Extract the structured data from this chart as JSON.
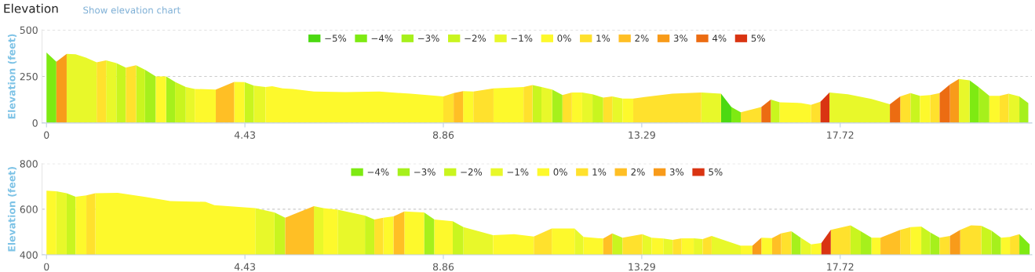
{
  "chart_data": [
    {
      "type": "area",
      "title": "Elevation",
      "annotations": [
        "Show elevation chart"
      ],
      "ylabel": "Elevation (feet)",
      "xlim": [
        -0.1,
        22.0
      ],
      "xticks": [
        0,
        4.43,
        8.86,
        13.29,
        17.72
      ],
      "ylim": [
        0,
        500
      ],
      "yticks": [
        0,
        250,
        500
      ],
      "grid": "y",
      "legend": "top",
      "series": [
        {
          "name": "−5%",
          "color": "#4cd912",
          "x": [
            15.06,
            15.29
          ],
          "values": [
            157,
            86
          ]
        },
        {
          "name": "−4%",
          "color": "#7eea12",
          "x": [
            0,
            0.22,
            null,
            15.29,
            15.5,
            null,
            20.61,
            20.81
          ],
          "values": [
            379,
            329,
            null,
            86,
            57,
            null,
            229,
            193
          ]
        },
        {
          "name": "−3%",
          "color": "#a6f01c",
          "x": [
            2.2,
            2.44,
            null,
            2.67,
            2.87,
            null,
            11.29,
            11.52,
            null,
            20.81,
            21.05,
            null,
            21.72,
            21.92
          ],
          "values": [
            286,
            250,
            null,
            250,
            221,
            null,
            179,
            150,
            null,
            193,
            146,
            null,
            143,
            107
          ]
        },
        {
          "name": "−2%",
          "color": "#c9f51f",
          "x": [
            1.56,
            1.77,
            null,
            2.0,
            2.2,
            null,
            2.87,
            3.11,
            null,
            4.42,
            4.63,
            null,
            10.85,
            11.05,
            null,
            12.19,
            12.43,
            null,
            16.17,
            16.37,
            null,
            19.29,
            19.5
          ],
          "values": [
            322,
            297,
            null,
            310,
            286,
            null,
            221,
            193,
            null,
            219,
            200,
            null,
            204,
            193,
            null,
            154,
            136,
            null,
            126,
            111,
            null,
            160,
            146
          ]
        },
        {
          "name": "−1%",
          "color": "#e8f82a",
          "x": [
            0.45,
            0.65,
            0.88,
            1.12,
            null,
            1.33,
            1.56,
            null,
            3.11,
            3.31,
            null,
            4.63,
            4.89,
            null,
            11.05,
            11.29,
            null,
            11.96,
            12.19,
            null,
            12.63,
            12.86,
            null,
            14.62,
            15.06,
            null,
            17.48,
            17.89,
            18.42,
            18.83,
            null,
            20.37,
            20.61,
            null,
            21.48,
            21.72
          ],
          "values": [
            371,
            369,
            351,
            326,
            null,
            336,
            322,
            null,
            193,
            183,
            null,
            200,
            193,
            null,
            193,
            179,
            null,
            164,
            154,
            null,
            143,
            131,
            null,
            164,
            157,
            null,
            164,
            154,
            129,
            100,
            null,
            236,
            229,
            null,
            157,
            143
          ]
        },
        {
          "name": "0%",
          "color": "#fdf92c",
          "x": [
            2.44,
            2.67,
            null,
            3.31,
            3.78,
            null,
            4.19,
            4.42,
            null,
            4.89,
            5.04,
            5.27,
            5.5,
            5.97,
            6.67,
            7.43,
            8.13,
            8.86,
            null,
            9.3,
            9.53,
            null,
            9.98,
            10.65,
            null,
            11.73,
            11.96,
            null,
            12.86,
            13.1,
            null,
            16.37,
            16.85,
            17.07,
            null,
            19.5,
            19.73,
            null,
            21.05,
            21.28
          ],
          "values": [
            250,
            250,
            null,
            183,
            179,
            null,
            221,
            219,
            null,
            193,
            197,
            186,
            183,
            169,
            166,
            169,
            157,
            143,
            null,
            171,
            169,
            null,
            186,
            193,
            null,
            164,
            164,
            null,
            131,
            131,
            null,
            111,
            107,
            97,
            null,
            146,
            150,
            null,
            146,
            146
          ]
        },
        {
          "name": "1%",
          "color": "#ffe12d",
          "x": [
            1.12,
            1.33,
            null,
            1.77,
            2.0,
            null,
            8.86,
            9.09,
            null,
            9.53,
            9.98,
            null,
            10.65,
            10.85,
            null,
            11.52,
            11.73,
            null,
            12.43,
            12.63,
            null,
            13.1,
            13.39,
            13.97,
            14.62,
            null,
            15.5,
            15.96,
            null,
            17.07,
            17.28,
            null,
            19.06,
            19.29,
            null,
            19.73,
            19.94,
            null,
            21.28,
            21.48
          ],
          "values": [
            326,
            336,
            null,
            297,
            310,
            null,
            143,
            160,
            null,
            169,
            186,
            null,
            193,
            204,
            null,
            150,
            164,
            null,
            136,
            143,
            null,
            131,
            140,
            157,
            164,
            null,
            57,
            86,
            null,
            97,
            114,
            null,
            143,
            160,
            null,
            150,
            160,
            null,
            146,
            157
          ]
        },
        {
          "name": "2%",
          "color": "#ffbf25",
          "x": [
            3.78,
            4.19,
            null,
            9.09,
            9.3
          ],
          "values": [
            179,
            221,
            null,
            160,
            171
          ]
        },
        {
          "name": "3%",
          "color": "#f89b1a",
          "x": [
            0.22,
            0.45,
            null,
            20.17,
            20.37
          ],
          "values": [
            329,
            371,
            null,
            207,
            236
          ]
        },
        {
          "name": "4%",
          "color": "#ec6c12",
          "x": [
            15.96,
            16.17,
            null,
            18.83,
            19.06,
            null,
            19.94,
            20.17
          ],
          "values": [
            86,
            126,
            null,
            100,
            143,
            null,
            160,
            207
          ]
        },
        {
          "name": "5%",
          "color": "#d93412",
          "x": [
            17.28,
            17.48
          ],
          "values": [
            114,
            164
          ]
        }
      ]
    },
    {
      "type": "area",
      "ylabel": "Elevation (feet)",
      "xlim": [
        -0.1,
        22.0
      ],
      "xticks": [
        0,
        4.43,
        8.86,
        13.29,
        17.72
      ],
      "ylim": [
        400,
        800
      ],
      "yticks": [
        400,
        600,
        800
      ],
      "grid": "y",
      "legend": "top",
      "series": [
        {
          "name": "−4%",
          "color": "#7eea12",
          "x": [
            21.72,
            21.95
          ],
          "values": [
            490,
            446
          ]
        },
        {
          "name": "−3%",
          "color": "#a6f01c",
          "x": [
            8.43,
            8.66,
            null,
            16.63,
            16.84,
            null,
            18.18,
            18.42,
            null,
            19.73,
            19.94,
            null,
            21.1,
            21.31
          ],
          "values": [
            586,
            555,
            null,
            503,
            475,
            null,
            503,
            475,
            null,
            498,
            475,
            null,
            506,
            475
          ]
        },
        {
          "name": "−2%",
          "color": "#c9f51f",
          "x": [
            0.45,
            0.65,
            null,
            5.09,
            5.33,
            null,
            7.11,
            7.32,
            null,
            9.07,
            9.31,
            null,
            12.63,
            12.86,
            null,
            17.95,
            18.18,
            null,
            19.53,
            19.73,
            null,
            20.87,
            21.1
          ],
          "values": [
            670,
            655,
            null,
            586,
            563,
            null,
            572,
            555,
            null,
            547,
            521,
            null,
            494,
            475,
            null,
            529,
            503,
            null,
            524,
            498,
            null,
            527,
            506
          ]
        },
        {
          "name": "−1%",
          "color": "#e8f82a",
          "x": [
            0.22,
            0.45,
            null,
            4.66,
            5.09,
            null,
            5.97,
            6.18,
            null,
            6.5,
            7.11,
            null,
            9.31,
            9.97,
            null,
            11.79,
            11.99,
            null,
            13.3,
            13.51,
            null,
            13.77,
            13.98,
            null,
            14.45,
            14.65,
            null,
            14.85,
            15.5,
            null,
            16.84,
            17.07
          ],
          "values": [
            679,
            670,
            null,
            605,
            586,
            null,
            613,
            605,
            null,
            598,
            572,
            null,
            521,
            486,
            null,
            515,
            478,
            null,
            490,
            475,
            null,
            471,
            465,
            null,
            472,
            469,
            null,
            483,
            440,
            null,
            475,
            446
          ]
        },
        {
          "name": "0%",
          "color": "#fdf92c",
          "x": [
            0,
            0.22,
            null,
            0.65,
            0.89,
            null,
            1.09,
            1.59,
            2.18,
            2.76,
            3.55,
            3.75,
            4.66,
            null,
            6.18,
            6.5,
            null,
            7.52,
            7.75,
            null,
            7.99,
            8.43,
            null,
            8.66,
            9.07,
            null,
            9.97,
            10.44,
            10.88,
            null,
            11.28,
            11.79,
            null,
            11.99,
            12.43,
            null,
            13.51,
            13.77,
            null,
            14.18,
            14.45,
            null,
            15.5,
            15.76,
            null,
            15.96,
            16.2,
            null,
            17.07,
            17.3,
            null,
            18.42,
            18.62,
            null,
            19.29,
            19.53,
            null,
            21.31,
            21.51
          ],
          "values": [
            681,
            679,
            null,
            655,
            661,
            null,
            670,
            672,
            655,
            636,
            632,
            618,
            605,
            null,
            605,
            598,
            null,
            563,
            569,
            null,
            590,
            586,
            null,
            555,
            547,
            null,
            486,
            490,
            480,
            null,
            515,
            515,
            null,
            478,
            471,
            null,
            475,
            471,
            null,
            472,
            472,
            null,
            440,
            440,
            null,
            475,
            473,
            null,
            446,
            452,
            null,
            475,
            475,
            null,
            521,
            524,
            null,
            475,
            478
          ]
        },
        {
          "name": "1%",
          "color": "#ffe12d",
          "x": [
            0.89,
            1.09,
            null,
            7.32,
            7.52,
            null,
            10.88,
            11.28,
            null,
            12.86,
            13.3,
            null,
            13.98,
            14.18,
            null,
            14.65,
            14.85,
            null,
            16.4,
            16.63,
            null,
            17.51,
            17.95,
            null,
            19.06,
            19.29,
            null,
            19.94,
            20.17,
            null,
            20.4,
            20.64,
            20.87,
            null,
            21.51,
            21.72
          ],
          "values": [
            661,
            670,
            null,
            555,
            563,
            null,
            480,
            515,
            null,
            475,
            490,
            null,
            465,
            472,
            null,
            469,
            483,
            null,
            494,
            503,
            null,
            509,
            529,
            null,
            509,
            521,
            null,
            475,
            483,
            null,
            509,
            529,
            527,
            null,
            478,
            490
          ]
        },
        {
          "name": "2%",
          "color": "#ffbf25",
          "x": [
            5.33,
            5.62,
            5.97,
            null,
            7.75,
            7.99,
            null,
            12.43,
            12.63,
            null,
            16.2,
            16.4,
            null,
            18.62,
            19.06
          ],
          "values": [
            563,
            586,
            613,
            null,
            569,
            590,
            null,
            471,
            494,
            null,
            473,
            494,
            null,
            475,
            509
          ]
        },
        {
          "name": "3%",
          "color": "#f89b1a",
          "x": [
            15.76,
            15.96,
            null,
            20.17,
            20.4
          ],
          "values": [
            440,
            475,
            null,
            483,
            509
          ]
        },
        {
          "name": "5%",
          "color": "#d93412",
          "x": [
            17.3,
            17.51
          ],
          "values": [
            452,
            509
          ]
        }
      ]
    }
  ]
}
